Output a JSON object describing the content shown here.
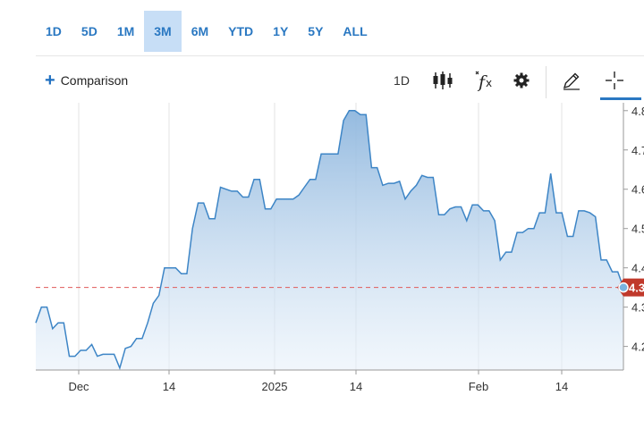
{
  "range_buttons": [
    {
      "label": "1D",
      "active": false
    },
    {
      "label": "5D",
      "active": false
    },
    {
      "label": "1M",
      "active": false
    },
    {
      "label": "3M",
      "active": true
    },
    {
      "label": "6M",
      "active": false
    },
    {
      "label": "YTD",
      "active": false
    },
    {
      "label": "1Y",
      "active": false
    },
    {
      "label": "5Y",
      "active": false
    },
    {
      "label": "ALL",
      "active": false
    }
  ],
  "toolbar": {
    "comparison_label": "Comparison",
    "interval_label": "1D",
    "icons": [
      "candlestick-icon",
      "function-fx-icon",
      "gear-icon",
      "pencil-icon",
      "crosshair-icon"
    ]
  },
  "colors": {
    "accent": "#2a78c2",
    "line": "#3d85c6",
    "current_price_marker": "#c0392b",
    "reference_line": "#e05a5a"
  },
  "chart_data": {
    "type": "area",
    "x_tick_labels": [
      "Dec",
      "14",
      "2025",
      "14",
      "Feb",
      "14"
    ],
    "y_tick_labels": [
      "4.8",
      "4.7",
      "4.6",
      "4.5",
      "4.4",
      "4.3",
      "4.2"
    ],
    "ylim": [
      4.14,
      4.82
    ],
    "grid": true,
    "current_value_label": "4.3",
    "current_value": 4.35,
    "reference_value": 4.35,
    "values": [
      4.26,
      4.3,
      4.3,
      4.245,
      4.26,
      4.26,
      4.175,
      4.175,
      4.19,
      4.19,
      4.205,
      4.175,
      4.18,
      4.18,
      4.18,
      4.145,
      4.195,
      4.2,
      4.22,
      4.22,
      4.26,
      4.31,
      4.33,
      4.4,
      4.4,
      4.4,
      4.385,
      4.385,
      4.5,
      4.565,
      4.565,
      4.525,
      4.525,
      4.605,
      4.6,
      4.595,
      4.595,
      4.58,
      4.58,
      4.625,
      4.625,
      4.55,
      4.55,
      4.575,
      4.575,
      4.575,
      4.575,
      4.585,
      4.605,
      4.625,
      4.625,
      4.69,
      4.69,
      4.69,
      4.69,
      4.775,
      4.8,
      4.8,
      4.79,
      4.79,
      4.655,
      4.655,
      4.61,
      4.615,
      4.615,
      4.62,
      4.575,
      4.595,
      4.61,
      4.635,
      4.63,
      4.63,
      4.535,
      4.535,
      4.55,
      4.555,
      4.555,
      4.52,
      4.56,
      4.56,
      4.545,
      4.545,
      4.52,
      4.42,
      4.44,
      4.44,
      4.49,
      4.49,
      4.5,
      4.5,
      4.54,
      4.54,
      4.64,
      4.54,
      4.54,
      4.48,
      4.48,
      4.545,
      4.545,
      4.54,
      4.53,
      4.42,
      4.42,
      4.39,
      4.39,
      4.35
    ]
  }
}
